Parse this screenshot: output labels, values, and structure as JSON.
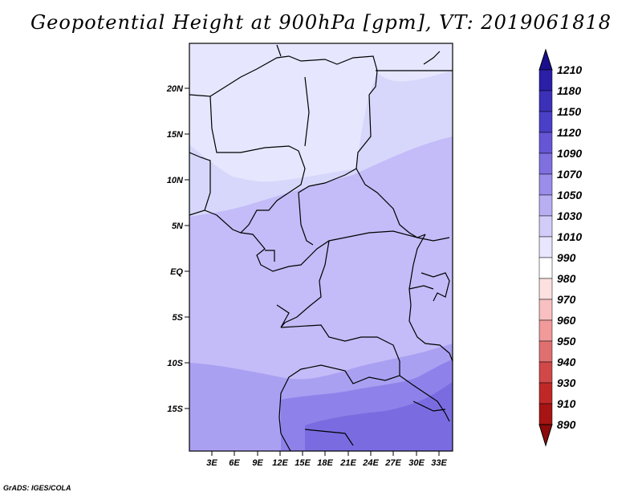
{
  "title": "Geopotential Height at 900hPa [gpm], VT: 2019061818",
  "credit": "GrADS: IGES/COLA",
  "map": {
    "lat_labels": [
      "20N",
      "15N",
      "10N",
      "5N",
      "EQ",
      "5S",
      "10S",
      "15S"
    ],
    "lon_labels": [
      "3E",
      "6E",
      "9E",
      "12E",
      "15E",
      "18E",
      "21E",
      "24E",
      "27E",
      "30E",
      "33E"
    ],
    "colors": {
      "band_1010": "#e6e6ff",
      "band_1030": "#d7d7fb",
      "band_1050": "#c3bcf8",
      "band_1070": "#aaa0f2",
      "band_1090": "#8e82ea",
      "band_1120": "#7a6ce0",
      "border": "#000000"
    }
  },
  "colorbar": {
    "levels": [
      "1210",
      "1180",
      "1150",
      "1120",
      "1090",
      "1070",
      "1050",
      "1030",
      "1010",
      "990",
      "980",
      "970",
      "960",
      "950",
      "940",
      "930",
      "910",
      "890"
    ],
    "colors": [
      "#1a0f8c",
      "#2a1fa6",
      "#3b30b8",
      "#4a3fc7",
      "#6656d6",
      "#7f70e0",
      "#9b8eea",
      "#b8aff3",
      "#d2ccf9",
      "#e9e6ff",
      "#ffffff",
      "#fde0e0",
      "#f8c0c0",
      "#f09a9a",
      "#e07070",
      "#d04848",
      "#c02828",
      "#a61414",
      "#8c0a0a"
    ]
  }
}
